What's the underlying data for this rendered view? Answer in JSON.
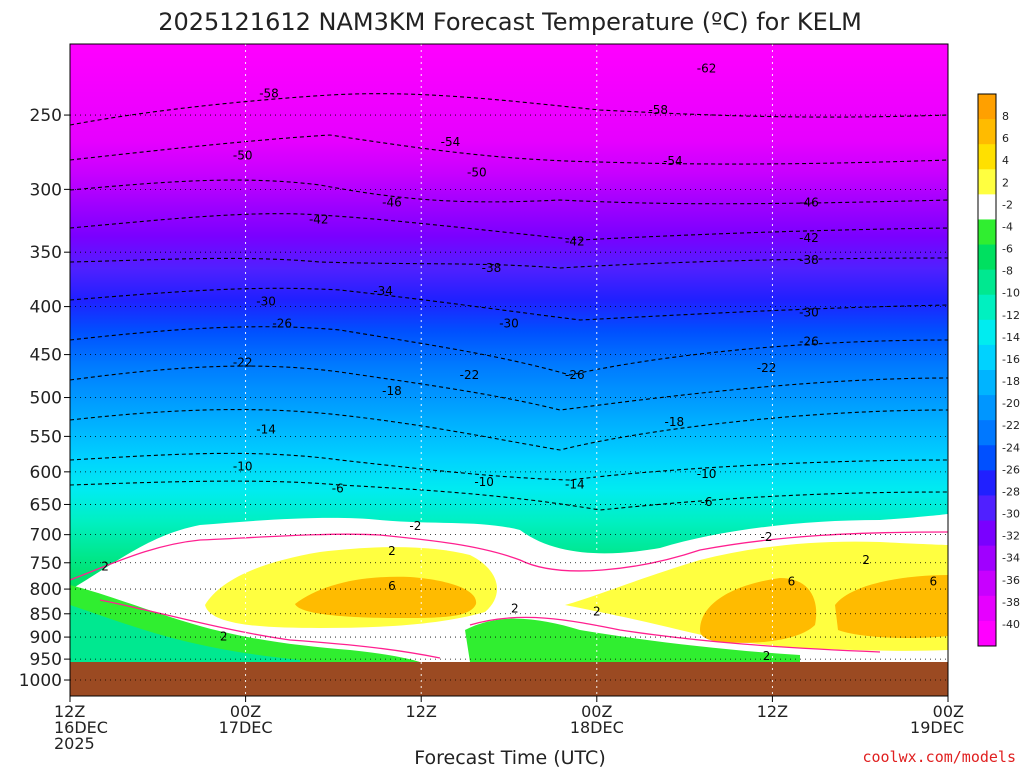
{
  "title": "2025121612 NAM3KM Forecast Temperature (ºC) for KELM",
  "xlabel": "Forecast Time (UTC)",
  "credit": "coolwx.com/models",
  "colors": {
    "ground": "#9b4a22",
    "bands": [
      "#ff00ff",
      "#e600ff",
      "#c800ff",
      "#a000ff",
      "#7a00ff",
      "#5020ff",
      "#2020ff",
      "#0050ff",
      "#0078ff",
      "#0096ff",
      "#00b4ff",
      "#00d2ff",
      "#00ecf0",
      "#00f0c0",
      "#00e890",
      "#00e060",
      "#30ee30",
      "#ffffff",
      "#ffff40",
      "#ffe000",
      "#ffbb00",
      "#ffa000"
    ],
    "cold_contour": "#000000",
    "zero_contour": "#ff2090"
  },
  "chart_data": {
    "type": "heatmap",
    "title": "2025121612 NAM3KM Forecast Temperature (ºC) for KELM",
    "xlabel": "Forecast Time (UTC)",
    "ylabel": "",
    "y_scale": "pressure (hPa), log",
    "y_ticks": [
      250,
      300,
      350,
      400,
      450,
      500,
      550,
      600,
      650,
      700,
      750,
      800,
      850,
      900,
      950,
      1000
    ],
    "x_ticks": [
      {
        "line1": "12Z",
        "line2": "16DEC",
        "line3": "2025",
        "hour": 0
      },
      {
        "line1": "00Z",
        "line2": "17DEC",
        "line3": "",
        "hour": 12
      },
      {
        "line1": "12Z",
        "line2": "",
        "line3": "",
        "hour": 24
      },
      {
        "line1": "00Z",
        "line2": "18DEC",
        "line3": "",
        "hour": 36
      },
      {
        "line1": "12Z",
        "line2": "",
        "line3": "",
        "hour": 48
      },
      {
        "line1": "00Z",
        "line2": "19DEC",
        "line3": "",
        "hour": 60
      }
    ],
    "xlim_hours": [
      0,
      60
    ],
    "ylim_hpa": [
      210,
      1040
    ],
    "surface_pressure_hpa": 980,
    "colorbar_labels": [
      "8",
      "6",
      "4",
      "2",
      "-2",
      "-4",
      "-6",
      "-8",
      "-10",
      "-12",
      "-14",
      "-16",
      "-18",
      "-20",
      "-22",
      "-24",
      "-26",
      "-28",
      "-30",
      "-32",
      "-34",
      "-36",
      "-38",
      "-40"
    ],
    "grid": true,
    "contours_label_sample": [
      {
        "label": "-62",
        "hour": 43.5,
        "p": 223
      },
      {
        "label": "-58",
        "hour": 13.6,
        "p": 237
      },
      {
        "label": "-58",
        "hour": 40.2,
        "p": 247
      },
      {
        "label": "-54",
        "hour": 26,
        "p": 267
      },
      {
        "label": "-54",
        "hour": 41.2,
        "p": 280
      },
      {
        "label": "-50",
        "hour": 11.8,
        "p": 276
      },
      {
        "label": "-50",
        "hour": 27.8,
        "p": 288
      },
      {
        "label": "-46",
        "hour": 22,
        "p": 310
      },
      {
        "label": "-46",
        "hour": 50.5,
        "p": 310
      },
      {
        "label": "-42",
        "hour": 17,
        "p": 323
      },
      {
        "label": "-42",
        "hour": 34.5,
        "p": 341
      },
      {
        "label": "-42",
        "hour": 50.5,
        "p": 338
      },
      {
        "label": "-38",
        "hour": 28.8,
        "p": 364
      },
      {
        "label": "-38",
        "hour": 50.5,
        "p": 357
      },
      {
        "label": "-34",
        "hour": 21.4,
        "p": 385
      },
      {
        "label": "-30",
        "hour": 13.4,
        "p": 395
      },
      {
        "label": "-30",
        "hour": 30,
        "p": 417
      },
      {
        "label": "-30",
        "hour": 50.5,
        "p": 406
      },
      {
        "label": "-26",
        "hour": 14.5,
        "p": 417
      },
      {
        "label": "-26",
        "hour": 50.5,
        "p": 436
      },
      {
        "label": "-26",
        "hour": 34.5,
        "p": 473
      },
      {
        "label": "-22",
        "hour": 11.8,
        "p": 459
      },
      {
        "label": "-22",
        "hour": 27.3,
        "p": 473
      },
      {
        "label": "-22",
        "hour": 47.6,
        "p": 465
      },
      {
        "label": "-18",
        "hour": 22,
        "p": 492
      },
      {
        "label": "-18",
        "hour": 41.3,
        "p": 531
      },
      {
        "label": "-14",
        "hour": 13.4,
        "p": 541
      },
      {
        "label": "-14",
        "hour": 34.5,
        "p": 619
      },
      {
        "label": "-10",
        "hour": 11.8,
        "p": 592
      },
      {
        "label": "-10",
        "hour": 28.3,
        "p": 615
      },
      {
        "label": "-10",
        "hour": 43.5,
        "p": 603
      },
      {
        "label": "-6",
        "hour": 18.3,
        "p": 625
      },
      {
        "label": "-6",
        "hour": 43.5,
        "p": 646
      },
      {
        "label": "-2",
        "hour": 23.6,
        "p": 685
      },
      {
        "label": "-2",
        "hour": 47.6,
        "p": 704
      },
      {
        "label": "2",
        "hour": 2.4,
        "p": 757
      },
      {
        "label": "2",
        "hour": 22,
        "p": 729
      },
      {
        "label": "2",
        "hour": 54.4,
        "p": 745
      },
      {
        "label": "6",
        "hour": 22,
        "p": 794
      },
      {
        "label": "6",
        "hour": 49.3,
        "p": 785
      },
      {
        "label": "6",
        "hour": 59,
        "p": 785
      },
      {
        "label": "2",
        "hour": 30.4,
        "p": 839
      },
      {
        "label": "2",
        "hour": 36,
        "p": 845
      },
      {
        "label": "2",
        "hour": 10.5,
        "p": 899
      },
      {
        "label": "2",
        "hour": 47.6,
        "p": 943
      }
    ]
  }
}
